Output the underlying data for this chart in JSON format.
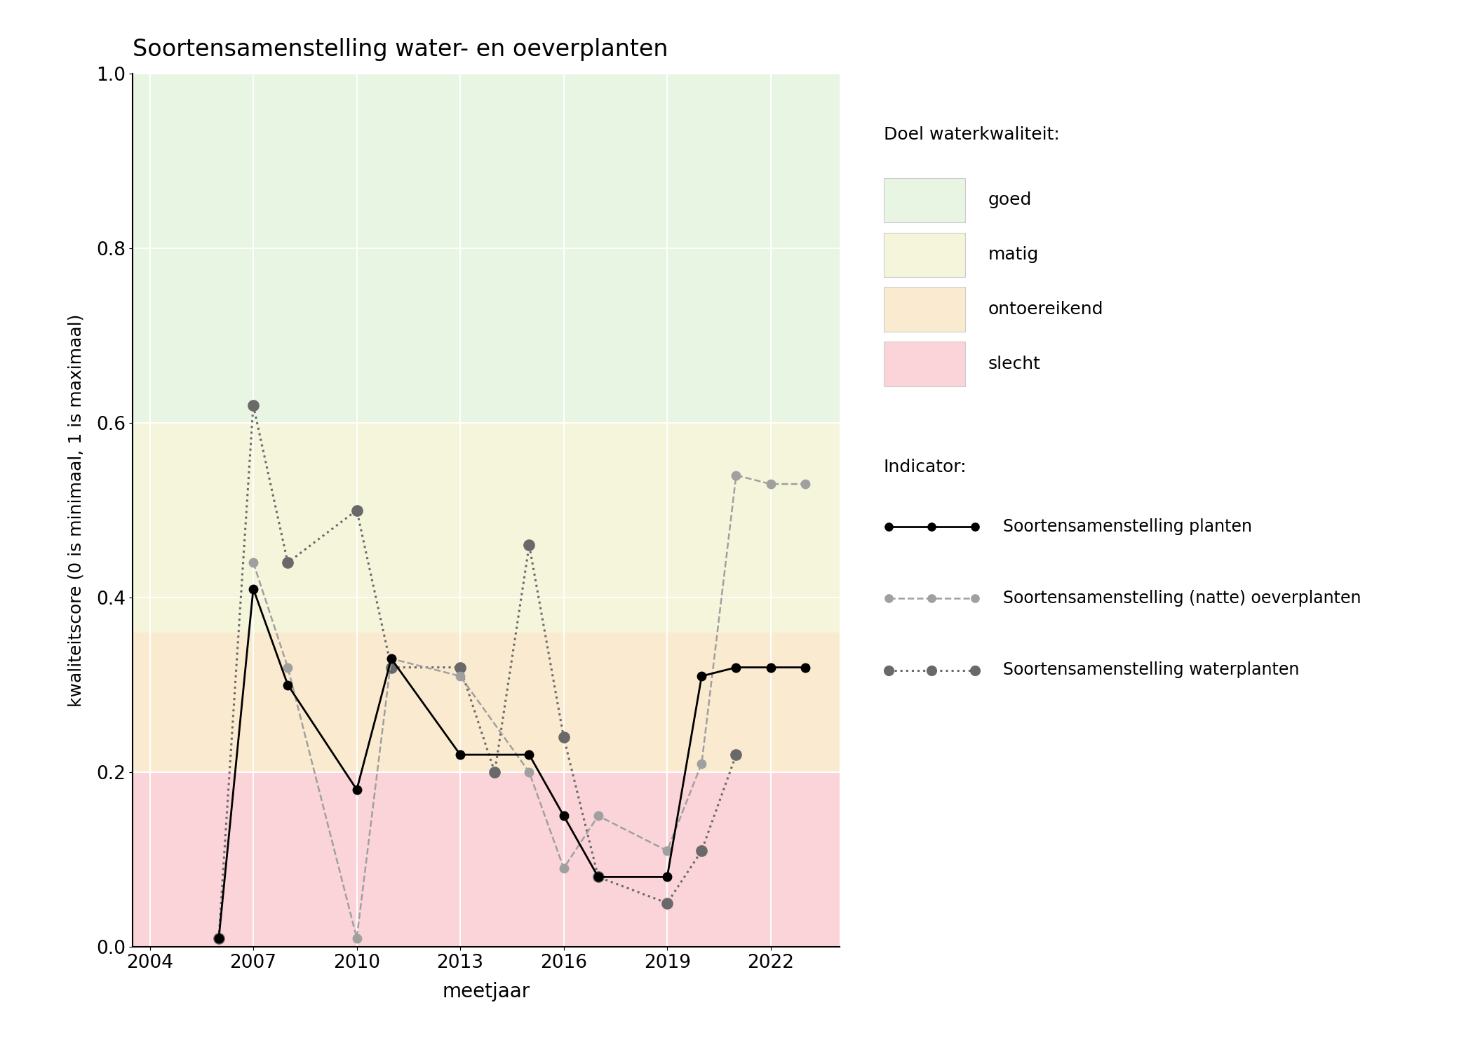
{
  "title": "Soortensamenstelling water- en oeverplanten",
  "xlabel": "meetjaar",
  "ylabel": "kwaliteitscore (0 is minimaal, 1 is maximaal)",
  "xlim": [
    2003.5,
    2024.0
  ],
  "ylim": [
    0.0,
    1.0
  ],
  "xticks": [
    2004,
    2007,
    2010,
    2013,
    2016,
    2019,
    2022
  ],
  "yticks": [
    0.0,
    0.2,
    0.4,
    0.6,
    0.8,
    1.0
  ],
  "bg_color": "#ffffff",
  "bands": [
    {
      "ymin": 0.6,
      "ymax": 1.0,
      "color": "#e8f5e2"
    },
    {
      "ymin": 0.36,
      "ymax": 0.6,
      "color": "#f5f5dc"
    },
    {
      "ymin": 0.2,
      "ymax": 0.36,
      "color": "#faebd0"
    },
    {
      "ymin": 0.0,
      "ymax": 0.2,
      "color": "#fad4d8"
    }
  ],
  "legend_band_colors": [
    "#e8f5e2",
    "#f5f5dc",
    "#faebd0",
    "#fad4d8"
  ],
  "legend_band_labels": [
    "goed",
    "matig",
    "ontoereikend",
    "slecht"
  ],
  "series_planten": {
    "x": [
      2006,
      2007,
      2008,
      2010,
      2011,
      2013,
      2015,
      2016,
      2017,
      2019,
      2020,
      2021,
      2022,
      2023
    ],
    "y": [
      0.01,
      0.41,
      0.3,
      0.18,
      0.33,
      0.22,
      0.22,
      0.15,
      0.08,
      0.08,
      0.31,
      0.32,
      0.32,
      0.32
    ],
    "color": "#000000",
    "linestyle": "-",
    "linewidth": 2.0,
    "markersize": 9,
    "label": "Soortensamenstelling planten"
  },
  "series_oeverplanten": {
    "x": [
      2007,
      2008,
      2010,
      2011,
      2013,
      2015,
      2016,
      2017,
      2019,
      2020,
      2021,
      2022,
      2023
    ],
    "y": [
      0.44,
      0.32,
      0.01,
      0.33,
      0.31,
      0.2,
      0.09,
      0.15,
      0.11,
      0.21,
      0.54,
      0.53,
      0.53
    ],
    "color": "#a0a0a0",
    "linestyle": "--",
    "linewidth": 1.8,
    "markersize": 9,
    "label": "Soortensamenstelling (natte) oeverplanten"
  },
  "series_waterplanten": {
    "x": [
      2006,
      2007,
      2008,
      2010,
      2011,
      2013,
      2014,
      2015,
      2016,
      2017,
      2019,
      2020,
      2021
    ],
    "y": [
      0.01,
      0.62,
      0.44,
      0.5,
      0.32,
      0.32,
      0.2,
      0.46,
      0.24,
      0.08,
      0.05,
      0.11,
      0.22
    ],
    "color": "#696969",
    "linestyle": ":",
    "linewidth": 2.2,
    "markersize": 11,
    "label": "Soortensamenstelling waterplanten"
  },
  "legend_doel_title": "Doel waterkwaliteit:",
  "legend_indicator_title": "Indicator:"
}
